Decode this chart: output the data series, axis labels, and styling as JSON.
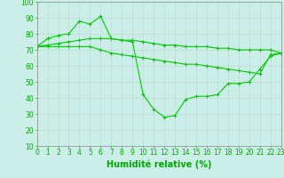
{
  "series": [
    {
      "x": [
        0,
        1,
        2,
        3,
        4,
        5,
        6,
        7,
        8,
        9,
        10,
        11,
        12,
        13,
        14,
        15,
        16,
        17,
        18,
        19,
        20,
        21,
        22,
        23
      ],
      "y": [
        72,
        77,
        79,
        80,
        88,
        86,
        91,
        77,
        76,
        75,
        42,
        33,
        28,
        29,
        39,
        41,
        41,
        42,
        49,
        49,
        50,
        58,
        66,
        68
      ],
      "color": "#00cc00",
      "linewidth": 0.8,
      "marker": "+",
      "markersize": 3.5
    },
    {
      "x": [
        0,
        1,
        2,
        3,
        4,
        5,
        6,
        7,
        8,
        9,
        10,
        11,
        12,
        13,
        14,
        15,
        16,
        17,
        18,
        19,
        20,
        21,
        22,
        23
      ],
      "y": [
        72,
        73,
        74,
        75,
        76,
        77,
        77,
        77,
        76,
        76,
        75,
        74,
        73,
        73,
        72,
        72,
        72,
        71,
        71,
        70,
        70,
        70,
        70,
        68
      ],
      "color": "#00cc00",
      "linewidth": 0.8,
      "marker": "+",
      "markersize": 3.5
    },
    {
      "x": [
        0,
        1,
        2,
        3,
        4,
        5,
        6,
        7,
        8,
        9,
        10,
        11,
        12,
        13,
        14,
        15,
        16,
        17,
        18,
        19,
        20,
        21,
        22,
        23
      ],
      "y": [
        72,
        72,
        72,
        72,
        72,
        72,
        70,
        68,
        67,
        66,
        65,
        64,
        63,
        62,
        61,
        61,
        60,
        59,
        58,
        57,
        56,
        55,
        67,
        68
      ],
      "color": "#00cc00",
      "linewidth": 0.8,
      "marker": "+",
      "markersize": 3.5
    }
  ],
  "xlabel": "Humidité relative (%)",
  "xlim": [
    0,
    23
  ],
  "ylim": [
    10,
    100
  ],
  "yticks": [
    10,
    20,
    30,
    40,
    50,
    60,
    70,
    80,
    90,
    100
  ],
  "xticks": [
    0,
    1,
    2,
    3,
    4,
    5,
    6,
    7,
    8,
    9,
    10,
    11,
    12,
    13,
    14,
    15,
    16,
    17,
    18,
    19,
    20,
    21,
    22,
    23
  ],
  "grid_color": "#bbddcc",
  "background_color": "#cceee8",
  "tick_color": "#00aa00",
  "xlabel_fontsize": 7,
  "tick_fontsize": 5.5
}
